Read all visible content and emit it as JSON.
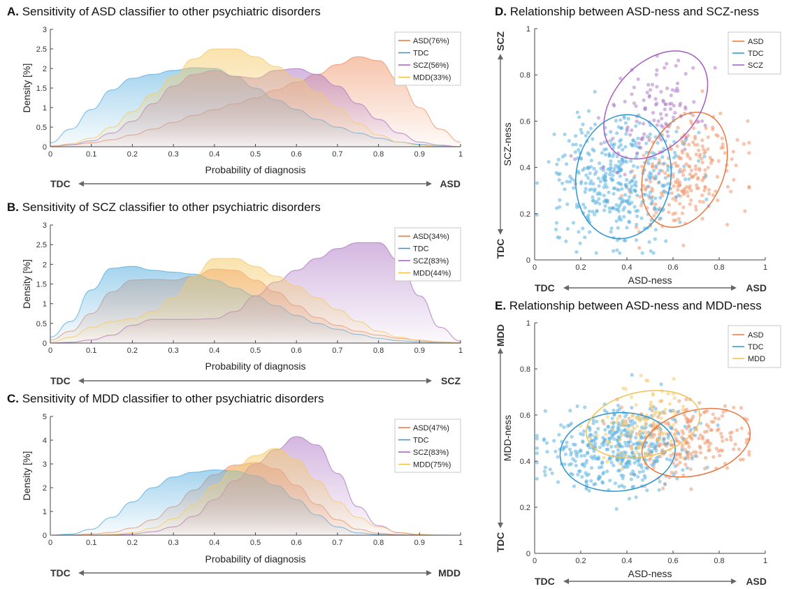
{
  "colors": {
    "ASD": "#F0956A",
    "TDC": "#5BB0E0",
    "SCZ": "#B07CC6",
    "MDD": "#F5CB6A",
    "ASD_line": "#E8773E",
    "TDC_line": "#2A95CF",
    "SCZ_line": "#A65CC0",
    "MDD_line": "#F2C04B",
    "axis": "#444444",
    "arrow": "#666666"
  },
  "chart_data": [
    {
      "id": "A",
      "type": "area",
      "title_letter": "A.",
      "title": "Sensitivity of ASD classifier to other psychiatric disorders",
      "xlabel": "Probability of diagnosis",
      "ylabel": "Density [%]",
      "xlim": [
        0,
        1
      ],
      "ylim": [
        0,
        3
      ],
      "xticks": [
        "0",
        "0.1",
        "0.2",
        "0.3",
        "0.4",
        "0.5",
        "0.6",
        "0.7",
        "0.8",
        "0.9",
        "1"
      ],
      "yticks": [
        "0",
        "0.5",
        "1",
        "1.5",
        "2",
        "2.5",
        "3"
      ],
      "arrow_left": "TDC",
      "arrow_right": "ASD",
      "legend_position": "top-right",
      "x": [
        0,
        0.05,
        0.1,
        0.15,
        0.2,
        0.25,
        0.3,
        0.35,
        0.4,
        0.45,
        0.5,
        0.55,
        0.6,
        0.65,
        0.7,
        0.75,
        0.8,
        0.85,
        0.9,
        0.95,
        1
      ],
      "series": [
        {
          "key": "ASD",
          "name": "ASD(76%)",
          "values": [
            0.02,
            0.05,
            0.1,
            0.18,
            0.3,
            0.45,
            0.62,
            0.8,
            0.95,
            1.1,
            1.25,
            1.45,
            1.65,
            1.85,
            2.1,
            2.3,
            2.2,
            1.7,
            1.0,
            0.45,
            0.12
          ]
        },
        {
          "key": "TDC",
          "name": "TDC",
          "values": [
            0.1,
            0.45,
            0.95,
            1.45,
            1.75,
            1.85,
            1.95,
            2.02,
            2.0,
            1.8,
            1.5,
            1.2,
            0.95,
            0.7,
            0.5,
            0.35,
            0.22,
            0.12,
            0.06,
            0.02,
            0.0
          ]
        },
        {
          "key": "SCZ",
          "name": "SCZ(56%)",
          "values": [
            0.0,
            0.05,
            0.15,
            0.35,
            0.65,
            1.1,
            1.55,
            1.85,
            1.95,
            1.8,
            1.75,
            1.95,
            2.0,
            1.85,
            1.55,
            1.1,
            0.7,
            0.35,
            0.12,
            0.04,
            0.0
          ]
        },
        {
          "key": "MDD",
          "name": "MDD(33%)",
          "values": [
            0.0,
            0.08,
            0.22,
            0.5,
            0.9,
            1.35,
            1.8,
            2.25,
            2.5,
            2.5,
            2.3,
            2.05,
            1.75,
            1.4,
            1.0,
            0.6,
            0.3,
            0.12,
            0.04,
            0.01,
            0.0
          ]
        }
      ]
    },
    {
      "id": "B",
      "type": "area",
      "title_letter": "B.",
      "title": "Sensitivity of SCZ classifier to other psychiatric disorders",
      "xlabel": "Probability of diagnosis",
      "ylabel": "Density [%]",
      "xlim": [
        0,
        1
      ],
      "ylim": [
        0,
        3
      ],
      "xticks": [
        "0",
        "0.1",
        "0.2",
        "0.3",
        "0.4",
        "0.5",
        "0.6",
        "0.7",
        "0.8",
        "0.9",
        "1"
      ],
      "yticks": [
        "0",
        "0.5",
        "1",
        "1.5",
        "2",
        "2.5",
        "3"
      ],
      "arrow_left": "TDC",
      "arrow_right": "SCZ",
      "legend_position": "top-right",
      "x": [
        0,
        0.05,
        0.1,
        0.15,
        0.2,
        0.25,
        0.3,
        0.35,
        0.4,
        0.45,
        0.5,
        0.55,
        0.6,
        0.65,
        0.7,
        0.75,
        0.8,
        0.85,
        0.9,
        0.95,
        1
      ],
      "series": [
        {
          "key": "ASD",
          "name": "ASD(34%)",
          "values": [
            0.08,
            0.3,
            0.75,
            1.3,
            1.6,
            1.62,
            1.6,
            1.7,
            1.88,
            1.85,
            1.6,
            1.3,
            0.95,
            0.65,
            0.45,
            0.3,
            0.2,
            0.12,
            0.07,
            0.03,
            0.01
          ]
        },
        {
          "key": "TDC",
          "name": "TDC",
          "values": [
            0.15,
            0.55,
            1.35,
            1.9,
            1.95,
            1.85,
            1.8,
            1.75,
            1.6,
            1.4,
            1.2,
            0.95,
            0.7,
            0.5,
            0.35,
            0.22,
            0.12,
            0.06,
            0.03,
            0.01,
            0.0
          ]
        },
        {
          "key": "SCZ",
          "name": "SCZ(83%)",
          "values": [
            0.0,
            0.02,
            0.08,
            0.2,
            0.45,
            0.6,
            0.6,
            0.6,
            0.62,
            0.8,
            1.2,
            1.55,
            1.85,
            2.15,
            2.4,
            2.55,
            2.55,
            2.1,
            1.2,
            0.4,
            0.05
          ]
        },
        {
          "key": "MDD",
          "name": "MDD(44%)",
          "values": [
            0.02,
            0.15,
            0.4,
            0.55,
            0.62,
            0.8,
            1.15,
            1.7,
            2.15,
            2.15,
            1.95,
            1.7,
            1.45,
            1.15,
            0.85,
            0.55,
            0.3,
            0.15,
            0.06,
            0.02,
            0.0
          ]
        }
      ]
    },
    {
      "id": "C",
      "type": "area",
      "title_letter": "C.",
      "title": "Sensitivity of MDD classifier to other psychiatric disorders",
      "xlabel": "Probability of diagnosis",
      "ylabel": "Density [%]",
      "xlim": [
        0,
        1
      ],
      "ylim": [
        0,
        5
      ],
      "xticks": [
        "0",
        "0.1",
        "0.2",
        "0.3",
        "0.4",
        "0.5",
        "0.6",
        "0.7",
        "0.8",
        "0.9",
        "1"
      ],
      "yticks": [
        "0",
        "1",
        "2",
        "3",
        "4",
        "5"
      ],
      "arrow_left": "TDC",
      "arrow_right": "MDD",
      "legend_position": "top-right",
      "x": [
        0,
        0.05,
        0.1,
        0.15,
        0.2,
        0.25,
        0.3,
        0.35,
        0.4,
        0.45,
        0.5,
        0.55,
        0.6,
        0.65,
        0.7,
        0.75,
        0.8,
        0.85,
        0.9,
        0.95,
        1
      ],
      "series": [
        {
          "key": "ASD",
          "name": "ASD(47%)",
          "values": [
            0.0,
            0.01,
            0.05,
            0.12,
            0.3,
            0.65,
            1.2,
            1.9,
            2.55,
            2.95,
            3.05,
            2.8,
            2.1,
            1.3,
            0.65,
            0.25,
            0.08,
            0.02,
            0.0,
            0.0,
            0.0
          ]
        },
        {
          "key": "TDC",
          "name": "TDC",
          "values": [
            0.0,
            0.05,
            0.25,
            0.75,
            1.4,
            2.0,
            2.45,
            2.65,
            2.75,
            2.7,
            2.5,
            2.1,
            1.5,
            0.85,
            0.35,
            0.1,
            0.03,
            0.01,
            0.0,
            0.0,
            0.0
          ]
        },
        {
          "key": "SCZ",
          "name": "SCZ(83%)",
          "values": [
            0.0,
            0.0,
            0.0,
            0.02,
            0.05,
            0.15,
            0.35,
            0.8,
            1.5,
            2.3,
            3.0,
            3.6,
            4.15,
            3.8,
            2.6,
            1.2,
            0.4,
            0.1,
            0.02,
            0.0,
            0.0
          ]
        },
        {
          "key": "MDD",
          "name": "MDD(75%)",
          "values": [
            0.0,
            0.0,
            0.01,
            0.03,
            0.1,
            0.3,
            0.7,
            1.3,
            2.1,
            2.85,
            3.35,
            3.65,
            3.2,
            2.3,
            1.4,
            0.75,
            0.35,
            0.12,
            0.04,
            0.01,
            0.0
          ]
        }
      ]
    },
    {
      "id": "D",
      "type": "scatter",
      "title_letter": "D.",
      "title": "Relationship between ASD-ness and SCZ-ness",
      "xlabel": "ASD-ness",
      "ylabel": "SCZ-ness",
      "xlim": [
        0,
        1
      ],
      "ylim": [
        0,
        1
      ],
      "xticks": [
        "0",
        "0.2",
        "0.4",
        "0.6",
        "0.8",
        "1"
      ],
      "yticks": [
        "0",
        "0.2",
        "0.4",
        "0.6",
        "0.8",
        "1"
      ],
      "arrow_left": "TDC",
      "arrow_right": "ASD",
      "arrow_bottom": "TDC",
      "arrow_top": "SCZ",
      "legend_position": "top-right",
      "groups": [
        {
          "key": "ASD",
          "name": "ASD",
          "n": 230,
          "mean": [
            0.66,
            0.38
          ],
          "sd": [
            0.12,
            0.13
          ],
          "rho": 0.35,
          "ellipse": {
            "cx": 0.65,
            "cy": 0.39,
            "rx": 0.26,
            "ry": 0.17,
            "angle": 68
          }
        },
        {
          "key": "TDC",
          "name": "TDC",
          "n": 420,
          "mean": [
            0.35,
            0.35
          ],
          "sd": [
            0.14,
            0.14
          ],
          "rho": 0.1,
          "ellipse": {
            "cx": 0.385,
            "cy": 0.36,
            "rx": 0.27,
            "ry": 0.205,
            "angle": 82
          }
        },
        {
          "key": "SCZ",
          "name": "SCZ",
          "n": 110,
          "mean": [
            0.53,
            0.64
          ],
          "sd": [
            0.12,
            0.12
          ],
          "rho": 0.45,
          "ellipse": {
            "cx": 0.525,
            "cy": 0.67,
            "rx": 0.27,
            "ry": 0.18,
            "angle": 48
          }
        }
      ]
    },
    {
      "id": "E",
      "type": "scatter",
      "title_letter": "E.",
      "title": "Relationship between ASD-ness and MDD-ness",
      "xlabel": "ASD-ness",
      "ylabel": "MDD-ness",
      "xlim": [
        0,
        1
      ],
      "ylim": [
        0,
        1
      ],
      "xticks": [
        "0",
        "0.2",
        "0.4",
        "0.6",
        "0.8",
        "1"
      ],
      "yticks": [
        "0",
        "0.2",
        "0.4",
        "0.6",
        "0.8",
        "1"
      ],
      "arrow_left": "TDC",
      "arrow_right": "ASD",
      "arrow_bottom": "TDC",
      "arrow_top": "MDD",
      "legend_position": "top-right",
      "groups": [
        {
          "key": "ASD",
          "name": "ASD",
          "n": 230,
          "mean": [
            0.65,
            0.5
          ],
          "sd": [
            0.13,
            0.08
          ],
          "rho": 0.1,
          "ellipse": {
            "cx": 0.7,
            "cy": 0.48,
            "rx": 0.24,
            "ry": 0.14,
            "angle": 15
          }
        },
        {
          "key": "TDC",
          "name": "TDC",
          "n": 420,
          "mean": [
            0.35,
            0.45
          ],
          "sd": [
            0.15,
            0.09
          ],
          "rho": 0.05,
          "ellipse": {
            "cx": 0.36,
            "cy": 0.44,
            "rx": 0.25,
            "ry": 0.17,
            "angle": 5
          }
        },
        {
          "key": "MDD",
          "name": "MDD",
          "n": 110,
          "mean": [
            0.47,
            0.55
          ],
          "sd": [
            0.1,
            0.08
          ],
          "rho": 0.2,
          "ellipse": {
            "cx": 0.47,
            "cy": 0.56,
            "rx": 0.25,
            "ry": 0.14,
            "angle": 12
          }
        }
      ]
    }
  ]
}
